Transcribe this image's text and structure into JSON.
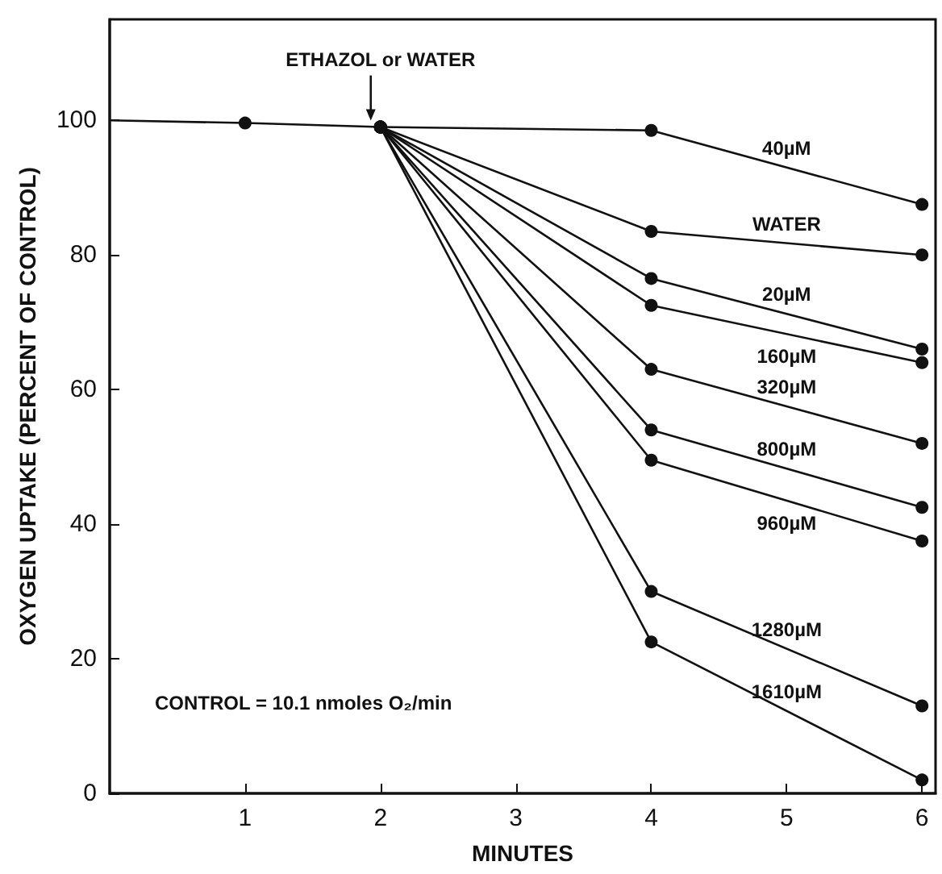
{
  "chart_data": {
    "type": "line",
    "xlabel": "MINUTES",
    "ylabel": "OXYGEN UPTAKE (PERCENT OF CONTROL)",
    "xlim": [
      0,
      6.1
    ],
    "ylim": [
      0,
      115
    ],
    "xticks": [
      1,
      2,
      3,
      4,
      5,
      6
    ],
    "yticks": [
      0,
      20,
      40,
      60,
      80,
      100
    ],
    "grid": false,
    "legend": false,
    "marker": "circle",
    "line_style": "solid",
    "annotations": [
      {
        "text": "ETHAZOL or WATER",
        "x": 2,
        "y": 99
      },
      "CONTROL = 10.1 nmoles O₂/min"
    ],
    "series": [
      {
        "color": "#111111",
        "x": [
          0,
          1,
          2
        ],
        "values": [
          100,
          99.6,
          99
        ]
      },
      {
        "name": "40µM",
        "color": "#111111",
        "x": [
          2,
          4,
          6
        ],
        "values": [
          99,
          98.5,
          87.5
        ]
      },
      {
        "name": "WATER",
        "color": "#111111",
        "x": [
          2,
          4,
          6
        ],
        "values": [
          99,
          83.5,
          80
        ]
      },
      {
        "name": "20µM",
        "color": "#111111",
        "x": [
          2,
          4,
          6
        ],
        "values": [
          99,
          76.5,
          66
        ]
      },
      {
        "name": "160µM",
        "color": "#111111",
        "x": [
          2,
          4,
          6
        ],
        "values": [
          99,
          72.5,
          64
        ]
      },
      {
        "name": "320µM",
        "color": "#111111",
        "x": [
          2,
          4,
          6
        ],
        "values": [
          99,
          63,
          52
        ]
      },
      {
        "name": "800µM",
        "color": "#111111",
        "x": [
          2,
          4,
          6
        ],
        "values": [
          99,
          54,
          42.5
        ]
      },
      {
        "name": "960µM",
        "color": "#111111",
        "x": [
          2,
          4,
          6
        ],
        "values": [
          99,
          49.5,
          37.5
        ]
      },
      {
        "name": "1280µM",
        "color": "#111111",
        "x": [
          2,
          4,
          6
        ],
        "values": [
          99,
          30,
          13
        ]
      },
      {
        "name": "1610µM",
        "color": "#111111",
        "x": [
          2,
          4,
          6
        ],
        "values": [
          99,
          22.5,
          2
        ]
      }
    ]
  }
}
